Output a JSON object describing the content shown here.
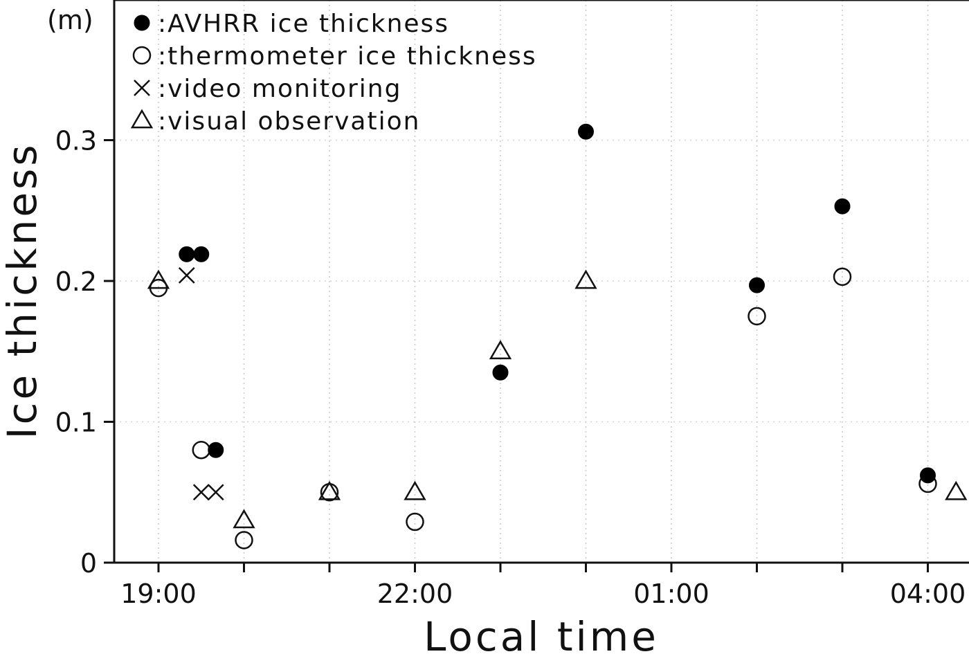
{
  "chart_data": {
    "type": "scatter",
    "title": "",
    "xlabel": "Local time",
    "ylabel": "Ice thickness",
    "unit_label": "(m)",
    "xlim": [
      -0.5,
      9.5
    ],
    "ylim": [
      0,
      0.4
    ],
    "x_ticks": [
      0,
      1,
      2,
      3,
      4,
      5,
      6,
      7,
      8,
      9
    ],
    "x_tick_labels": [
      {
        "x": 0,
        "label": "19:00"
      },
      {
        "x": 3,
        "label": "22:00"
      },
      {
        "x": 6,
        "label": "01:00"
      },
      {
        "x": 9,
        "label": "04:00"
      }
    ],
    "y_ticks": [
      {
        "y": 0,
        "label": "0"
      },
      {
        "y": 0.1,
        "label": "0.1"
      },
      {
        "y": 0.2,
        "label": "0.2"
      },
      {
        "y": 0.3,
        "label": "0.3"
      }
    ],
    "grid": "vertical-dotted",
    "legend_position": "top-left",
    "series": [
      {
        "name": "AVHRR ice thickness",
        "marker": "filled-circle",
        "points": [
          {
            "x": 0.33,
            "y": 0.219
          },
          {
            "x": 0.5,
            "y": 0.219
          },
          {
            "x": 0.67,
            "y": 0.08
          },
          {
            "x": 4,
            "y": 0.135
          },
          {
            "x": 5,
            "y": 0.306
          },
          {
            "x": 7,
            "y": 0.197
          },
          {
            "x": 8,
            "y": 0.253
          },
          {
            "x": 9,
            "y": 0.062
          }
        ]
      },
      {
        "name": "thermometer ice thickness",
        "marker": "open-circle",
        "points": [
          {
            "x": 0,
            "y": 0.195
          },
          {
            "x": 0.5,
            "y": 0.08
          },
          {
            "x": 1,
            "y": 0.016
          },
          {
            "x": 2,
            "y": 0.05
          },
          {
            "x": 3,
            "y": 0.029
          },
          {
            "x": 7,
            "y": 0.175
          },
          {
            "x": 8,
            "y": 0.203
          },
          {
            "x": 9,
            "y": 0.056
          }
        ]
      },
      {
        "name": "video monitoring",
        "marker": "cross",
        "points": [
          {
            "x": 0.33,
            "y": 0.204
          },
          {
            "x": 0.5,
            "y": 0.05
          },
          {
            "x": 0.67,
            "y": 0.05
          }
        ]
      },
      {
        "name": "visual observation",
        "marker": "open-triangle",
        "points": [
          {
            "x": 0,
            "y": 0.2
          },
          {
            "x": 1,
            "y": 0.03
          },
          {
            "x": 2,
            "y": 0.05
          },
          {
            "x": 3,
            "y": 0.05
          },
          {
            "x": 4,
            "y": 0.15
          },
          {
            "x": 5,
            "y": 0.2
          },
          {
            "x": 9.33,
            "y": 0.05
          }
        ]
      }
    ]
  }
}
